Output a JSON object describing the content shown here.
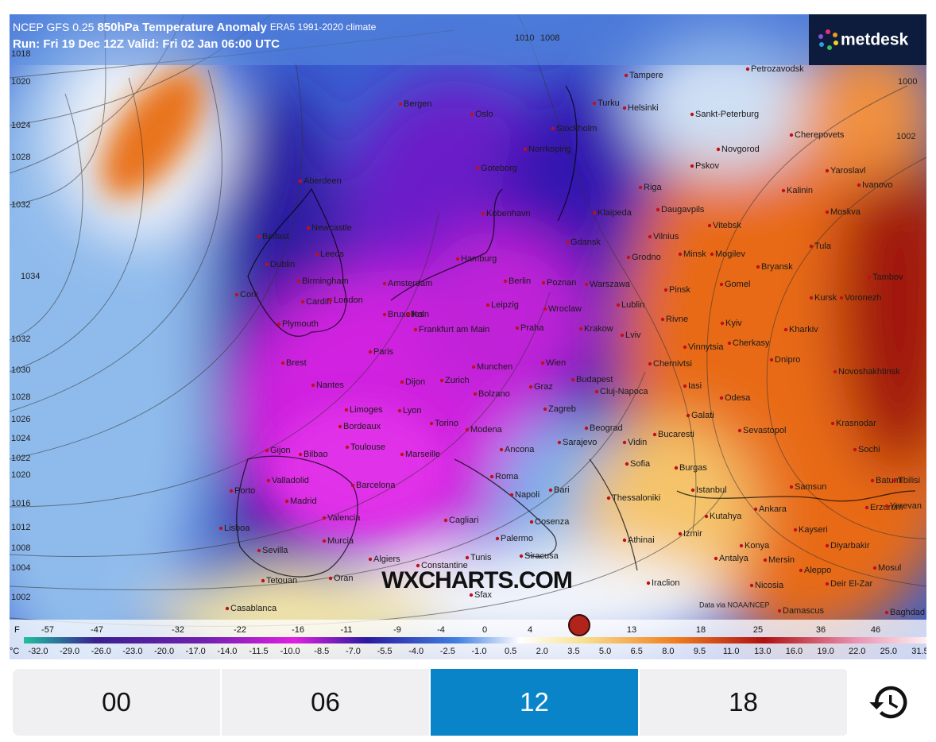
{
  "header": {
    "model": "NCEP GFS 0.25",
    "field": "850hPa Temperature Anomaly",
    "climate": "ERA5 1991-2020 climate",
    "run": "Run: Fri 19 Dec 12Z Valid: Fri 02 Jan 06:00 UTC"
  },
  "logo": "metdesk",
  "watermark": "WXCHARTS.COM",
  "credit": "Data via NOAA/NCEP",
  "cities": [
    "Tampere",
    "Petrozavodsk",
    "Bergen",
    "Oslo",
    "Turku",
    "Helsinki",
    "Sankt-Peterburg",
    "Stockholm",
    "Norrkoping",
    "Cherepovets",
    "Novgorod",
    "Goteborg",
    "Pskov",
    "Yaroslavl",
    "Aberdeen",
    "Riga",
    "Kalinin",
    "Ivanovo",
    "Kobenhavn",
    "Klaipeda",
    "Daugavpils",
    "Moskva",
    "Newcastle",
    "Belfast",
    "Vitebsk",
    "Vilnius",
    "Gdansk",
    "Tula",
    "Leeds",
    "Dublin",
    "Hamburg",
    "Minsk",
    "Mogilev",
    "Grodno",
    "Bryansk",
    "Birmingham",
    "Berlin",
    "Poznan",
    "Warszawa",
    "Amsterdam",
    "Gomel",
    "Tambov",
    "Cork",
    "Cardiff",
    "London",
    "Pinsk",
    "Kursk",
    "Voronezh",
    "Leipzig",
    "Wroclaw",
    "Lublin",
    "Bruxelles",
    "Koln",
    "Plymouth",
    "Frankfurt am Main",
    "Praha",
    "Krakow",
    "Rivne",
    "Kyiv",
    "Kharkiv",
    "Lviv",
    "Vinnytsia",
    "Cherkasy",
    "Paris",
    "Brest",
    "Chernivtsi",
    "Dnipro",
    "Novoshakhtinsk",
    "Munchen",
    "Wien",
    "Budapest",
    "Nantes",
    "Dijon",
    "Zurich",
    "Graz",
    "Iasi",
    "Cluj-Napoca",
    "Odesa",
    "Limoges",
    "Lyon",
    "Bolzano",
    "Zagreb",
    "Galati",
    "Krasnodar",
    "Beograd",
    "Sevastopol",
    "Bordeaux",
    "Torino",
    "Modena",
    "Sarajevo",
    "Bucaresti",
    "Vidin",
    "Sochi",
    "Toulouse",
    "Ancona",
    "Sofia",
    "Burgas",
    "Batumi",
    "Tbilisi",
    "Gijon",
    "Bilbao",
    "Marseille",
    "Roma",
    "Istanbul",
    "Samsun",
    "Valladolid",
    "Barcelona",
    "Bari",
    "Napoli",
    "Thessaloniki",
    "Erzurum",
    "Yerevan",
    "Porto",
    "Madrid",
    "Kutahya",
    "Ankara",
    "Kayseri",
    "Valencia",
    "Cagliari",
    "Cosenza",
    "Palermo",
    "Izmir",
    "Lisboa",
    "Sevilla",
    "Murcia",
    "Konya",
    "Diyarbakir",
    "Mosul",
    "Siracusa",
    "Athinai",
    "Antalya",
    "Mersin",
    "Aleppo",
    "Algiers",
    "Constantine",
    "Tunis",
    "Oran",
    "Tetouan",
    "Iraclion",
    "Nicosia",
    "Deir El-Zar",
    "Sfax",
    "Casablanca",
    "Damascus",
    "Baghdad"
  ],
  "isobar_labels": [
    1018,
    1020,
    1024,
    1028,
    1032,
    1034,
    1032,
    1030,
    1028,
    1026,
    1024,
    1022,
    1020,
    1016,
    1012,
    1008,
    1004,
    1002,
    1000,
    1002,
    1010,
    1008
  ],
  "legend": {
    "f_unit": "F",
    "f_labels": [
      "-57",
      "-47",
      "-32",
      "-22",
      "-16",
      "-11",
      "-9",
      "-4",
      "0",
      "4",
      "13",
      "18",
      "25",
      "36",
      "46"
    ],
    "c_unit": "°C",
    "c_labels": [
      "-32.0",
      "-29.0",
      "-26.0",
      "-23.0",
      "-20.0",
      "-17.0",
      "-14.0",
      "-11.5",
      "-10.0",
      "-8.5",
      "-7.0",
      "-5.5",
      "-4.0",
      "-2.5",
      "-1.0",
      "0.5",
      "2.0",
      "3.5",
      "5.0",
      "6.5",
      "8.0",
      "9.5",
      "11.0",
      "13.0",
      "16.0",
      "19.0",
      "22.0",
      "25.0",
      "31.5"
    ]
  },
  "tabs": [
    "00",
    "06",
    "12",
    "18"
  ],
  "selected_tab": 2
}
